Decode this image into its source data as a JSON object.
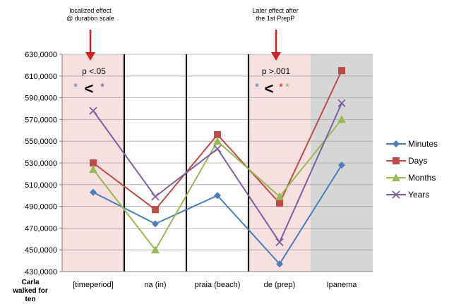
{
  "annotations": {
    "left_note": [
      "localized effect",
      "@ duration scale"
    ],
    "right_note": [
      "Later effect after",
      "the 1st PrepP"
    ],
    "left_p": "p <.05",
    "right_p": "p >.001",
    "less_than": "<",
    "star": "*",
    "subject_label": [
      "Carla",
      "walked for",
      "ten"
    ]
  },
  "colors": {
    "minutes": "#4a7ebb",
    "days": "#be4b48",
    "months": "#98b954",
    "years": "#7d60a0",
    "highlight_pink": "#f6e0e0",
    "highlight_gray": "#d6d6d6",
    "arrow": "#d22020",
    "star_blue": "#4a7ebb",
    "star_purple": "#7d3fb0",
    "star_red": "#d22020",
    "star_green": "#7fbf3f"
  },
  "chart_data": {
    "type": "line",
    "categories": [
      "[timeperiod]",
      "na (in)",
      "praia (beach)",
      "de (prep)",
      "Ipanema"
    ],
    "ylim": [
      430,
      630
    ],
    "yticks": [
      "630,0000",
      "610,0000",
      "590,0000",
      "570,0000",
      "550,0000",
      "530,0000",
      "510,0000",
      "490,0000",
      "470,0000",
      "450,0000",
      "430,0000"
    ],
    "grid": true,
    "legend_position": "right",
    "series": [
      {
        "name": "Minutes",
        "marker": "diamond",
        "values": [
          503,
          474,
          500,
          437,
          528
        ]
      },
      {
        "name": "Days",
        "marker": "square",
        "values": [
          530,
          487,
          556,
          493,
          615
        ]
      },
      {
        "name": "Months",
        "marker": "triangle",
        "values": [
          524,
          450,
          550,
          499,
          570
        ]
      },
      {
        "name": "Years",
        "marker": "x",
        "values": [
          578,
          499,
          543,
          457,
          585
        ]
      }
    ]
  }
}
